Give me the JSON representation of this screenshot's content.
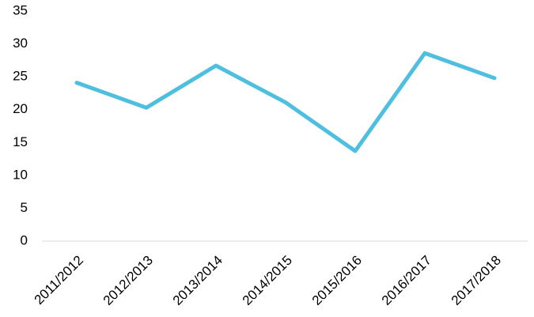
{
  "chart_data": {
    "type": "line",
    "categories": [
      "2011/2012",
      "2012/2013",
      "2013/2014",
      "2014/2015",
      "2015/2016",
      "2016/2017",
      "2017/2018"
    ],
    "series": [
      {
        "color": "#4fbfe0",
        "values": [
          24.1,
          20.3,
          26.7,
          21.1,
          13.7,
          28.6,
          24.8
        ]
      }
    ],
    "ylim": [
      0,
      35
    ],
    "yticks": [
      0,
      5,
      10,
      15,
      20,
      25,
      30,
      35
    ],
    "grid": false
  }
}
